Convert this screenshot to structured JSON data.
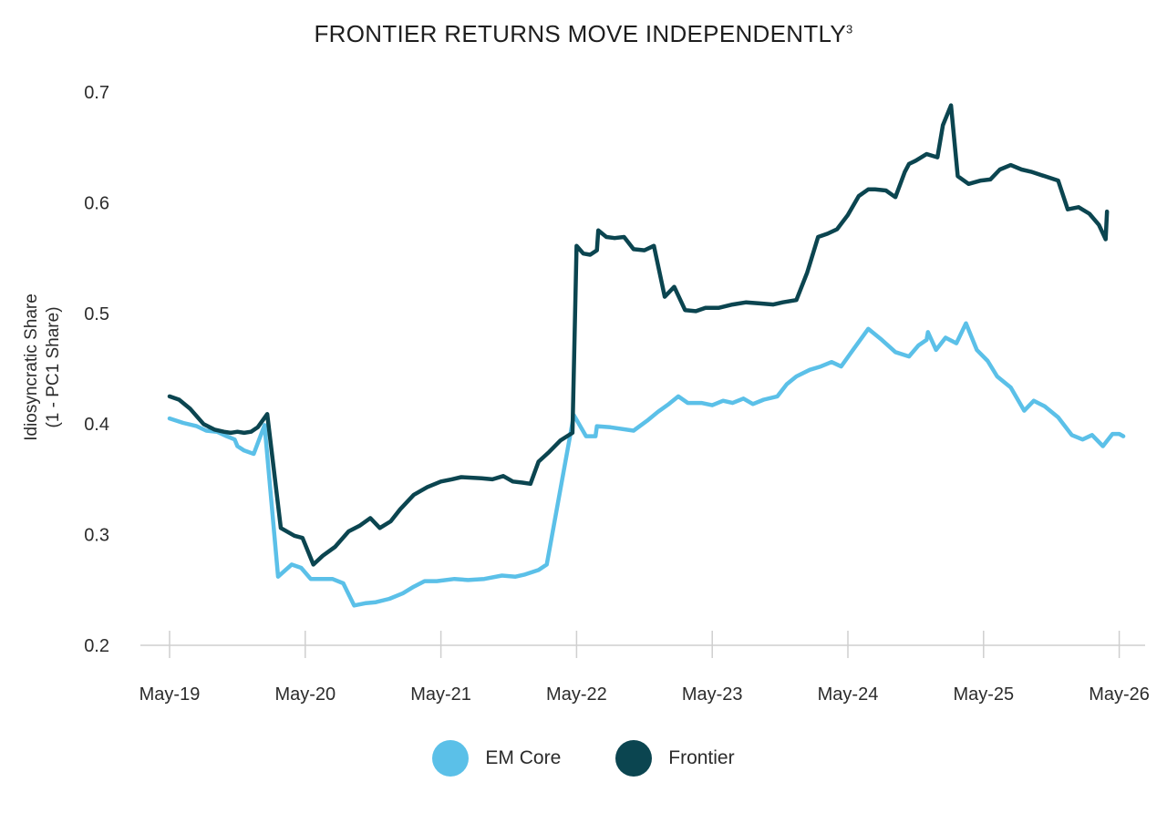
{
  "chart_data": {
    "type": "line",
    "title": "FRONTIER RETURNS MOVE INDEPENDENTLY",
    "title_superscript": "3",
    "ylabel_line1": "Idiosyncratic Share",
    "ylabel_line2": "(1 - PC1 Share)",
    "xlabel": "",
    "ylim": [
      0.2,
      0.7
    ],
    "y_ticks": [
      "0.2",
      "0.3",
      "0.4",
      "0.5",
      "0.6",
      "0.7"
    ],
    "x_ticks": [
      "May-19",
      "May-20",
      "May-21",
      "May-22",
      "May-23",
      "May-24",
      "May-25",
      "May-26"
    ],
    "x_unit": "years since May-19",
    "grid": false,
    "legend_position": "bottom",
    "series": [
      {
        "name": "EM Core",
        "color": "#5BC0E8",
        "points": [
          [
            0.0,
            0.405
          ],
          [
            0.1,
            0.401
          ],
          [
            0.2,
            0.398
          ],
          [
            0.27,
            0.394
          ],
          [
            0.35,
            0.393
          ],
          [
            0.42,
            0.389
          ],
          [
            0.48,
            0.386
          ],
          [
            0.5,
            0.38
          ],
          [
            0.55,
            0.376
          ],
          [
            0.62,
            0.373
          ],
          [
            0.7,
            0.399
          ],
          [
            0.8,
            0.262
          ],
          [
            0.9,
            0.273
          ],
          [
            0.97,
            0.27
          ],
          [
            1.04,
            0.26
          ],
          [
            1.12,
            0.26
          ],
          [
            1.2,
            0.26
          ],
          [
            1.28,
            0.256
          ],
          [
            1.36,
            0.236
          ],
          [
            1.44,
            0.238
          ],
          [
            1.52,
            0.239
          ],
          [
            1.62,
            0.242
          ],
          [
            1.72,
            0.247
          ],
          [
            1.8,
            0.253
          ],
          [
            1.88,
            0.258
          ],
          [
            1.97,
            0.258
          ],
          [
            2.1,
            0.26
          ],
          [
            2.2,
            0.259
          ],
          [
            2.32,
            0.26
          ],
          [
            2.45,
            0.263
          ],
          [
            2.55,
            0.262
          ],
          [
            2.62,
            0.264
          ],
          [
            2.72,
            0.268
          ],
          [
            2.78,
            0.273
          ],
          [
            2.98,
            0.408
          ],
          [
            3.07,
            0.389
          ],
          [
            3.14,
            0.389
          ],
          [
            3.15,
            0.398
          ],
          [
            3.25,
            0.397
          ],
          [
            3.42,
            0.394
          ],
          [
            3.52,
            0.403
          ],
          [
            3.6,
            0.411
          ],
          [
            3.68,
            0.418
          ],
          [
            3.75,
            0.425
          ],
          [
            3.82,
            0.419
          ],
          [
            3.92,
            0.419
          ],
          [
            4.0,
            0.417
          ],
          [
            4.08,
            0.421
          ],
          [
            4.15,
            0.419
          ],
          [
            4.23,
            0.423
          ],
          [
            4.3,
            0.418
          ],
          [
            4.38,
            0.422
          ],
          [
            4.48,
            0.425
          ],
          [
            4.55,
            0.436
          ],
          [
            4.62,
            0.443
          ],
          [
            4.72,
            0.449
          ],
          [
            4.8,
            0.452
          ],
          [
            4.88,
            0.456
          ],
          [
            4.95,
            0.452
          ],
          [
            5.02,
            0.464
          ],
          [
            5.15,
            0.486
          ],
          [
            5.25,
            0.476
          ],
          [
            5.35,
            0.465
          ],
          [
            5.45,
            0.461
          ],
          [
            5.52,
            0.471
          ],
          [
            5.58,
            0.476
          ],
          [
            5.59,
            0.483
          ],
          [
            5.65,
            0.467
          ],
          [
            5.72,
            0.478
          ],
          [
            5.8,
            0.473
          ],
          [
            5.87,
            0.491
          ],
          [
            5.95,
            0.467
          ],
          [
            6.03,
            0.457
          ],
          [
            6.1,
            0.443
          ],
          [
            6.2,
            0.433
          ],
          [
            6.3,
            0.412
          ],
          [
            6.37,
            0.421
          ],
          [
            6.45,
            0.416
          ],
          [
            6.55,
            0.406
          ],
          [
            6.65,
            0.39
          ],
          [
            6.73,
            0.386
          ],
          [
            6.8,
            0.39
          ],
          [
            6.88,
            0.38
          ],
          [
            6.95,
            0.391
          ],
          [
            7.0,
            0.391
          ],
          [
            7.03,
            0.389
          ]
        ]
      },
      {
        "name": "Frontier",
        "color": "#0B4550",
        "points": [
          [
            0.0,
            0.425
          ],
          [
            0.07,
            0.422
          ],
          [
            0.15,
            0.414
          ],
          [
            0.25,
            0.4
          ],
          [
            0.33,
            0.395
          ],
          [
            0.4,
            0.393
          ],
          [
            0.45,
            0.392
          ],
          [
            0.5,
            0.393
          ],
          [
            0.55,
            0.392
          ],
          [
            0.6,
            0.393
          ],
          [
            0.65,
            0.397
          ],
          [
            0.72,
            0.409
          ],
          [
            0.82,
            0.306
          ],
          [
            0.92,
            0.299
          ],
          [
            0.98,
            0.297
          ],
          [
            1.06,
            0.273
          ],
          [
            1.13,
            0.281
          ],
          [
            1.22,
            0.289
          ],
          [
            1.32,
            0.303
          ],
          [
            1.4,
            0.308
          ],
          [
            1.48,
            0.315
          ],
          [
            1.55,
            0.306
          ],
          [
            1.63,
            0.312
          ],
          [
            1.7,
            0.323
          ],
          [
            1.8,
            0.336
          ],
          [
            1.9,
            0.343
          ],
          [
            2.0,
            0.348
          ],
          [
            2.08,
            0.35
          ],
          [
            2.15,
            0.352
          ],
          [
            2.3,
            0.351
          ],
          [
            2.38,
            0.35
          ],
          [
            2.46,
            0.353
          ],
          [
            2.53,
            0.348
          ],
          [
            2.6,
            0.347
          ],
          [
            2.66,
            0.346
          ],
          [
            2.72,
            0.366
          ],
          [
            2.8,
            0.375
          ],
          [
            2.88,
            0.385
          ],
          [
            2.97,
            0.392
          ],
          [
            3.0,
            0.561
          ],
          [
            3.05,
            0.554
          ],
          [
            3.1,
            0.553
          ],
          [
            3.15,
            0.557
          ],
          [
            3.16,
            0.575
          ],
          [
            3.22,
            0.569
          ],
          [
            3.28,
            0.568
          ],
          [
            3.35,
            0.569
          ],
          [
            3.42,
            0.558
          ],
          [
            3.5,
            0.557
          ],
          [
            3.57,
            0.561
          ],
          [
            3.65,
            0.515
          ],
          [
            3.72,
            0.524
          ],
          [
            3.8,
            0.503
          ],
          [
            3.88,
            0.502
          ],
          [
            3.95,
            0.505
          ],
          [
            4.05,
            0.505
          ],
          [
            4.15,
            0.508
          ],
          [
            4.25,
            0.51
          ],
          [
            4.35,
            0.509
          ],
          [
            4.45,
            0.508
          ],
          [
            4.52,
            0.51
          ],
          [
            4.62,
            0.512
          ],
          [
            4.7,
            0.537
          ],
          [
            4.78,
            0.569
          ],
          [
            4.85,
            0.572
          ],
          [
            4.92,
            0.576
          ],
          [
            5.0,
            0.589
          ],
          [
            5.08,
            0.606
          ],
          [
            5.15,
            0.612
          ],
          [
            5.2,
            0.612
          ],
          [
            5.28,
            0.611
          ],
          [
            5.35,
            0.605
          ],
          [
            5.42,
            0.628
          ],
          [
            5.45,
            0.635
          ],
          [
            5.5,
            0.638
          ],
          [
            5.58,
            0.644
          ],
          [
            5.66,
            0.641
          ],
          [
            5.7,
            0.67
          ],
          [
            5.76,
            0.688
          ],
          [
            5.81,
            0.624
          ],
          [
            5.89,
            0.617
          ],
          [
            5.98,
            0.62
          ],
          [
            6.05,
            0.621
          ],
          [
            6.12,
            0.63
          ],
          [
            6.2,
            0.634
          ],
          [
            6.28,
            0.63
          ],
          [
            6.35,
            0.628
          ],
          [
            6.45,
            0.624
          ],
          [
            6.55,
            0.62
          ],
          [
            6.62,
            0.594
          ],
          [
            6.7,
            0.596
          ],
          [
            6.78,
            0.59
          ],
          [
            6.85,
            0.58
          ],
          [
            6.9,
            0.567
          ],
          [
            6.91,
            0.592
          ]
        ]
      }
    ]
  }
}
